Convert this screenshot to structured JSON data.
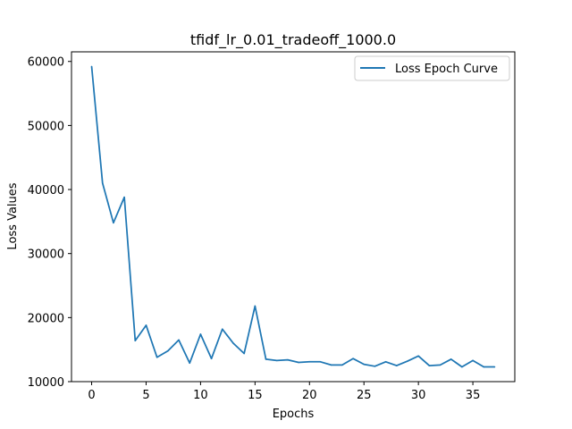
{
  "chart_data": {
    "type": "line",
    "title": "tfidf_lr_0.01_tradeoff_1000.0",
    "xlabel": "Epochs",
    "ylabel": "Loss Values",
    "xlim": [
      -1.85,
      38.85
    ],
    "ylim": [
      10000,
      61500
    ],
    "xticks": [
      0,
      5,
      10,
      15,
      20,
      25,
      30,
      35
    ],
    "yticks": [
      10000,
      20000,
      30000,
      40000,
      50000,
      60000
    ],
    "grid": false,
    "legend_position": "upper right",
    "series": [
      {
        "name": "Loss Epoch Curve",
        "color": "#1f77b4",
        "x": [
          0,
          1,
          2,
          3,
          4,
          5,
          6,
          7,
          8,
          9,
          10,
          11,
          12,
          13,
          14,
          15,
          16,
          17,
          18,
          19,
          20,
          21,
          22,
          23,
          24,
          25,
          26,
          27,
          28,
          29,
          30,
          31,
          32,
          33,
          34,
          35,
          36,
          37
        ],
        "values": [
          59200,
          41000,
          34800,
          38800,
          16400,
          18800,
          13800,
          14800,
          16500,
          12900,
          17400,
          13600,
          18200,
          16000,
          14400,
          21800,
          13500,
          13300,
          13400,
          13000,
          13100,
          13100,
          12600,
          12600,
          13600,
          12700,
          12400,
          13100,
          12500,
          13200,
          14000,
          12500,
          12600,
          13500,
          12300,
          13300,
          12300,
          12300
        ]
      }
    ]
  }
}
